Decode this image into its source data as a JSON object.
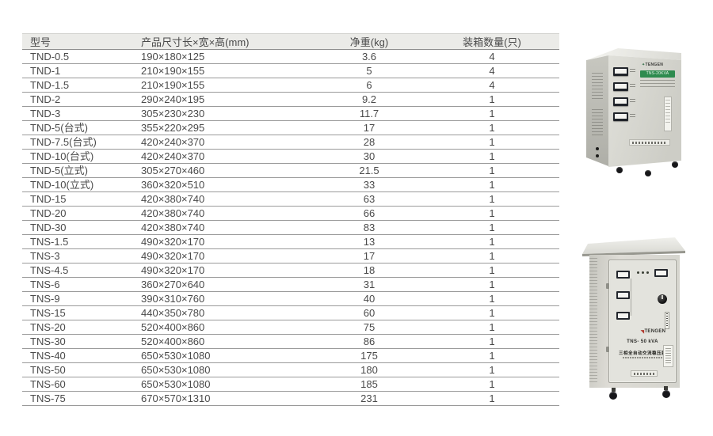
{
  "table": {
    "columns": [
      {
        "label": "型号",
        "align": "left"
      },
      {
        "label": "产品尺寸长×宽×高(mm)",
        "align": "left"
      },
      {
        "label": "净重(kg)",
        "align": "center"
      },
      {
        "label": "装箱数量(只)",
        "align": "center"
      }
    ],
    "rows": [
      [
        "TND-0.5",
        "190×180×125",
        "3.6",
        "4"
      ],
      [
        "TND-1",
        "210×190×155",
        "5",
        "4"
      ],
      [
        "TND-1.5",
        "210×190×155",
        "6",
        "4"
      ],
      [
        "TND-2",
        "290×240×195",
        "9.2",
        "1"
      ],
      [
        "TND-3",
        "305×230×230",
        "11.7",
        "1"
      ],
      [
        "TND-5(台式)",
        "355×220×295",
        "17",
        "1"
      ],
      [
        "TND-7.5(台式)",
        "420×240×370",
        "28",
        "1"
      ],
      [
        "TND-10(台式)",
        "420×240×370",
        "30",
        "1"
      ],
      [
        "TND-5(立式)",
        "305×270×460",
        "21.5",
        "1"
      ],
      [
        "TND-10(立式)",
        "360×320×510",
        "33",
        "1"
      ],
      [
        "TND-15",
        "420×380×740",
        "63",
        "1"
      ],
      [
        "TND-20",
        "420×380×740",
        "66",
        "1"
      ],
      [
        "TND-30",
        "420×380×740",
        "83",
        "1"
      ],
      [
        "TNS-1.5",
        "490×320×170",
        "13",
        "1"
      ],
      [
        "TNS-3",
        "490×320×170",
        "17",
        "1"
      ],
      [
        "TNS-4.5",
        "490×320×170",
        "18",
        "1"
      ],
      [
        "TNS-6",
        "360×270×640",
        "31",
        "1"
      ],
      [
        "TNS-9",
        "390×310×760",
        "40",
        "1"
      ],
      [
        "TNS-15",
        "440×350×780",
        "60",
        "1"
      ],
      [
        "TNS-20",
        "520×400×860",
        "75",
        "1"
      ],
      [
        "TNS-30",
        "520×400×860",
        "86",
        "1"
      ],
      [
        "TNS-40",
        "650×530×1080",
        "175",
        "1"
      ],
      [
        "TNS-50",
        "650×530×1080",
        "180",
        "1"
      ],
      [
        "TNS-60",
        "650×530×1080",
        "185",
        "1"
      ],
      [
        "TNS-75",
        "670×570×1310",
        "231",
        "1"
      ]
    ]
  },
  "products": {
    "top_unit": {
      "brand": "TENGEN",
      "model_label": "TNS-20KVA"
    },
    "bottom_unit": {
      "brand": "TENGEN",
      "model_label": "TNS- 50 kVA",
      "type_label": "三相全自动交流稳压器"
    }
  },
  "colors": {
    "header_bg": "#ebebe8",
    "row_border": "#9a9a9a",
    "text": "#4a4a4a",
    "accent_green": "#2e8b4f",
    "cabinet": "#d8d8d1"
  }
}
